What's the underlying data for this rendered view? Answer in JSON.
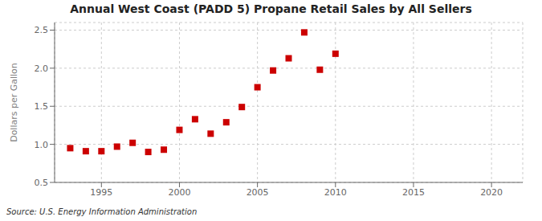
{
  "chart_data": {
    "type": "scatter",
    "title": "Annual West Coast (PADD 5) Propane Retail Sales by All Sellers",
    "ylabel": "Dollars per Gallon",
    "annotation": "Source: U.S. Energy Information Administration",
    "x": [
      1993,
      1994,
      1995,
      1996,
      1997,
      1998,
      1999,
      2000,
      2001,
      2002,
      2003,
      2004,
      2005,
      2006,
      2007,
      2008,
      2009,
      2010
    ],
    "values": [
      0.95,
      0.91,
      0.91,
      0.97,
      1.02,
      0.9,
      0.93,
      1.19,
      1.33,
      1.14,
      1.29,
      1.49,
      1.75,
      1.97,
      2.13,
      2.47,
      1.98,
      2.19
    ],
    "color": "#cc0000",
    "marker": "square",
    "xlim": [
      1992,
      2022
    ],
    "ylim": [
      0.5,
      2.6
    ],
    "xticks": [
      1995,
      2000,
      2005,
      2010,
      2015,
      2020
    ],
    "yticks": [
      0.5,
      {
        "value": 1,
        "label": "1.0"
      },
      1.5,
      {
        "value": 2,
        "label": "2.0"
      },
      2.5
    ],
    "grid": true
  }
}
